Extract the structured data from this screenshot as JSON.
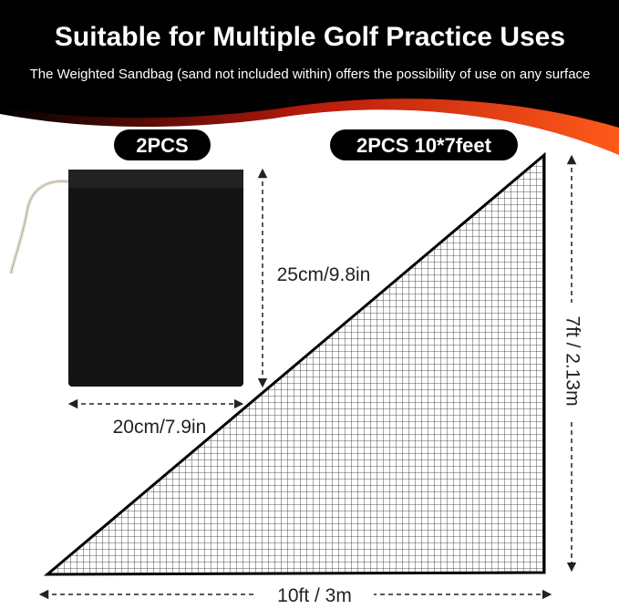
{
  "header": {
    "title": "Suitable for Multiple Golf Practice Uses",
    "subtitle": "The Weighted Sandbag (sand not included within) offers the possibility of use on any surface"
  },
  "labels": {
    "bag_count": "2PCS",
    "net_count": "2PCS 10*7feet",
    "bag_height": "25cm/9.8in",
    "bag_width": "20cm/7.9in",
    "net_height": "7ft / 2.13m",
    "net_width": "10ft / 3m"
  }
}
